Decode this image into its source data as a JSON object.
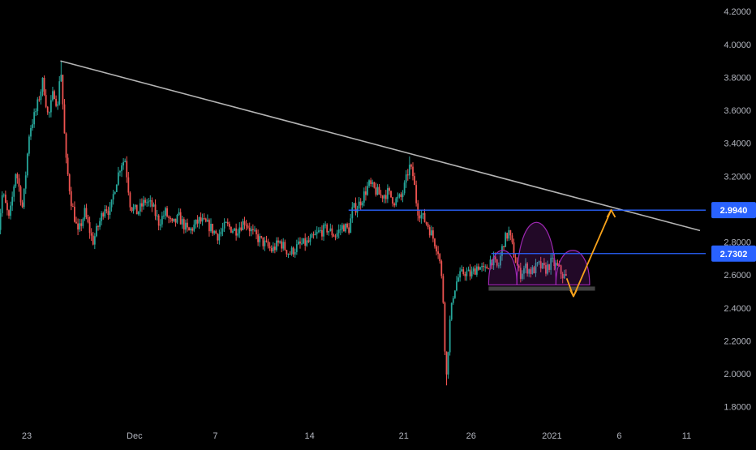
{
  "chart_data": {
    "type": "candlestick",
    "x_axis": {
      "ticks": [
        {
          "label": "23",
          "day": 0
        },
        {
          "label": "Dec",
          "day": 8
        },
        {
          "label": "7",
          "day": 14
        },
        {
          "label": "14",
          "day": 21
        },
        {
          "label": "21",
          "day": 28
        },
        {
          "label": "26",
          "day": 33
        },
        {
          "label": "2021",
          "day": 39
        },
        {
          "label": "6",
          "day": 44
        },
        {
          "label": "11",
          "day": 49
        }
      ]
    },
    "y_axis": {
      "ylim": [
        1.7,
        4.27
      ],
      "ticks": [
        "4.2000",
        "4.0000",
        "3.8000",
        "3.6000",
        "3.4000",
        "3.2000",
        "3.0000",
        "2.8000",
        "2.6000",
        "2.4000",
        "2.2000",
        "2.0000",
        "1.8000"
      ]
    },
    "price_path": [
      [
        -2.2,
        2.8
      ],
      [
        -1.8,
        3.1
      ],
      [
        -1.3,
        2.93
      ],
      [
        -0.8,
        3.24
      ],
      [
        -0.3,
        3.0
      ],
      [
        0.2,
        3.48
      ],
      [
        0.7,
        3.6
      ],
      [
        1.2,
        3.78
      ],
      [
        1.6,
        3.55
      ],
      [
        2.0,
        3.72
      ],
      [
        2.3,
        3.62
      ],
      [
        2.5,
        3.9
      ],
      [
        2.9,
        3.3
      ],
      [
        3.3,
        3.05
      ],
      [
        3.8,
        2.85
      ],
      [
        4.3,
        2.98
      ],
      [
        4.9,
        2.8
      ],
      [
        5.4,
        2.92
      ],
      [
        5.8,
        3.02
      ],
      [
        6.2,
        2.98
      ],
      [
        6.5,
        3.12
      ],
      [
        7.0,
        3.28
      ],
      [
        7.3,
        3.3
      ],
      [
        7.7,
        3.02
      ],
      [
        8.2,
        2.98
      ],
      [
        8.8,
        3.05
      ],
      [
        9.3,
        3.02
      ],
      [
        9.8,
        2.92
      ],
      [
        10.3,
        2.98
      ],
      [
        10.8,
        2.9
      ],
      [
        11.3,
        2.95
      ],
      [
        12.0,
        2.86
      ],
      [
        12.8,
        2.93
      ],
      [
        13.5,
        2.9
      ],
      [
        14.2,
        2.84
      ],
      [
        14.8,
        2.9
      ],
      [
        15.5,
        2.87
      ],
      [
        16.2,
        2.93
      ],
      [
        16.8,
        2.85
      ],
      [
        17.5,
        2.8
      ],
      [
        18.2,
        2.75
      ],
      [
        18.8,
        2.8
      ],
      [
        19.5,
        2.73
      ],
      [
        20.2,
        2.78
      ],
      [
        21.0,
        2.8
      ],
      [
        21.7,
        2.86
      ],
      [
        22.3,
        2.88
      ],
      [
        22.9,
        2.84
      ],
      [
        23.5,
        2.9
      ],
      [
        23.9,
        2.87
      ],
      [
        24.2,
        3.0
      ],
      [
        24.6,
        3.02
      ],
      [
        25.0,
        3.08
      ],
      [
        25.4,
        3.15
      ],
      [
        25.8,
        3.12
      ],
      [
        26.3,
        3.08
      ],
      [
        26.8,
        3.1
      ],
      [
        27.3,
        3.05
      ],
      [
        27.8,
        3.07
      ],
      [
        28.1,
        3.15
      ],
      [
        28.4,
        3.26
      ],
      [
        28.7,
        3.2
      ],
      [
        29.0,
        3.0
      ],
      [
        29.4,
        2.95
      ],
      [
        29.8,
        2.9
      ],
      [
        30.2,
        2.82
      ],
      [
        30.6,
        2.74
      ],
      [
        30.9,
        2.5
      ],
      [
        31.15,
        1.95
      ],
      [
        31.4,
        2.3
      ],
      [
        31.7,
        2.5
      ],
      [
        32.0,
        2.58
      ],
      [
        32.5,
        2.62
      ],
      [
        33.0,
        2.6
      ],
      [
        33.5,
        2.66
      ],
      [
        34.0,
        2.62
      ],
      [
        34.5,
        2.7
      ],
      [
        35.0,
        2.64
      ],
      [
        35.4,
        2.8
      ],
      [
        35.8,
        2.86
      ],
      [
        36.2,
        2.72
      ],
      [
        36.6,
        2.6
      ],
      [
        37.0,
        2.65
      ],
      [
        37.5,
        2.62
      ],
      [
        38.0,
        2.66
      ],
      [
        38.5,
        2.63
      ],
      [
        39.0,
        2.68
      ],
      [
        39.4,
        2.65
      ],
      [
        39.8,
        2.6
      ],
      [
        40.1,
        2.58
      ]
    ],
    "annotations": {
      "trendline": {
        "from": [
          2.5,
          3.9
        ],
        "to": [
          50.0,
          2.87
        ]
      },
      "resistance_1": {
        "value": 2.994,
        "label": "2.9940",
        "from_day": 23.9
      },
      "resistance_2": {
        "value": 2.7302,
        "label": "2.7302",
        "from_day": 34.5
      },
      "support_zone": {
        "from_day": 34.3,
        "to_day": 42.2,
        "low": 2.505,
        "high": 2.53
      },
      "head_and_shoulders": {
        "arches": [
          {
            "from_day": 34.3,
            "to_day": 36.4,
            "top": 2.75
          },
          {
            "from_day": 36.4,
            "to_day": 39.3,
            "top": 2.92
          },
          {
            "from_day": 39.3,
            "to_day": 41.8,
            "top": 2.75
          }
        ]
      },
      "projection": {
        "points": [
          [
            40.1,
            2.58
          ],
          [
            40.6,
            2.47
          ],
          [
            43.4,
            2.995
          ]
        ]
      }
    },
    "colors": {
      "background": "#000000",
      "bull": "#26a69a",
      "bear": "#ef5350",
      "trendline": "#b4b4b4",
      "level": "#2962ff",
      "pattern": "#9c27b0",
      "projection": "#f7a21b",
      "axis_text": "#b2b5be"
    }
  }
}
